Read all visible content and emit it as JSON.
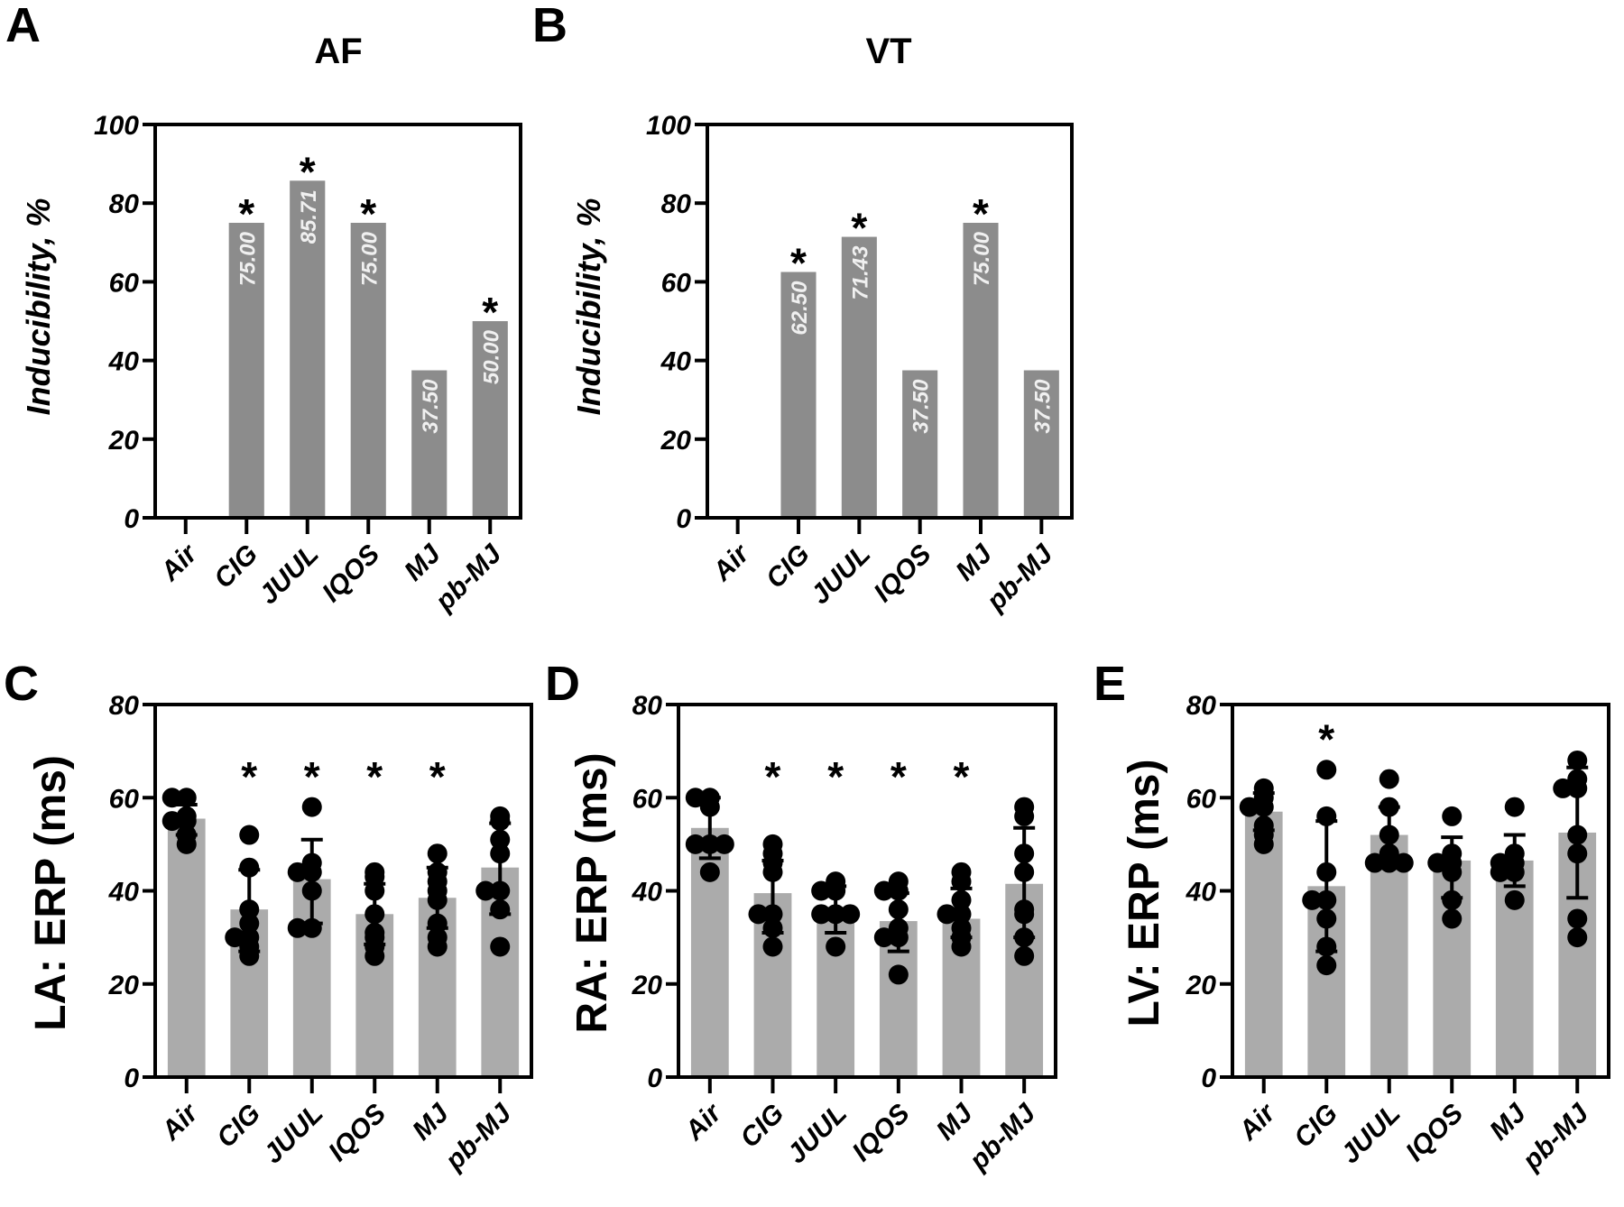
{
  "figure": {
    "colors": {
      "inducibility_bar": "#8c8c8c",
      "erp_bar": "#ababab",
      "axis": "#000000",
      "dot": "#000000",
      "bar_label_text": "#f2f2f2"
    }
  },
  "chart_data": [
    {
      "panel": "A",
      "type": "bar",
      "title": "AF",
      "ylabel": "Inducibility, %",
      "xlabel": "",
      "categories": [
        "Air",
        "CIG",
        "JUUL",
        "IQOS",
        "MJ",
        "pb-MJ"
      ],
      "values": [
        0,
        75.0,
        85.71,
        75.0,
        37.5,
        50.0
      ],
      "value_labels": [
        "",
        "75.00",
        "85.71",
        "75.00",
        "37.50",
        "50.00"
      ],
      "significant": [
        false,
        true,
        true,
        true,
        false,
        true
      ],
      "ylim": [
        0,
        100
      ],
      "yticks": [
        0,
        20,
        40,
        60,
        80,
        100
      ],
      "ytick_labels": [
        "0",
        "20",
        "40",
        "60",
        "80",
        "100"
      ],
      "grid": false,
      "legend": "none"
    },
    {
      "panel": "B",
      "type": "bar",
      "title": "VT",
      "ylabel": "Inducibility, %",
      "xlabel": "",
      "categories": [
        "Air",
        "CIG",
        "JUUL",
        "IQOS",
        "MJ",
        "pb-MJ"
      ],
      "values": [
        0,
        62.5,
        71.43,
        37.5,
        75.0,
        37.5
      ],
      "value_labels": [
        "",
        "62.50",
        "71.43",
        "37.50",
        "75.00",
        "37.50"
      ],
      "significant": [
        false,
        true,
        true,
        false,
        true,
        false
      ],
      "ylim": [
        0,
        100
      ],
      "yticks": [
        0,
        20,
        40,
        60,
        80,
        100
      ],
      "ytick_labels": [
        "0",
        "20",
        "40",
        "60",
        "80",
        "100"
      ],
      "grid": false,
      "legend": "none"
    },
    {
      "panel": "C",
      "type": "bar",
      "title": "",
      "ylabel": "LA: ERP (ms)",
      "xlabel": "",
      "categories": [
        "Air",
        "CIG",
        "JUUL",
        "IQOS",
        "MJ",
        "pb-MJ"
      ],
      "values": [
        55.5,
        36.0,
        42.5,
        35.0,
        38.5,
        45.0
      ],
      "error_upper": [
        58.5,
        44.5,
        51.0,
        41.5,
        45.0,
        54.5
      ],
      "error_lower": [
        52.0,
        27.0,
        33.0,
        28.5,
        32.0,
        35.0
      ],
      "points": [
        [
          60,
          60,
          56,
          55,
          55,
          52,
          50
        ],
        [
          52,
          45,
          36,
          33,
          30,
          30,
          28,
          26
        ],
        [
          58,
          46,
          44,
          44,
          40,
          32,
          32
        ],
        [
          44,
          43,
          40,
          35,
          31,
          30,
          28,
          26
        ],
        [
          48,
          44,
          42,
          40,
          38,
          33,
          30,
          28
        ],
        [
          56,
          55,
          51,
          48,
          40,
          40,
          36,
          28
        ]
      ],
      "significant": [
        false,
        true,
        true,
        true,
        true,
        false
      ],
      "ylim": [
        0,
        80
      ],
      "yticks": [
        0,
        20,
        40,
        60,
        80
      ],
      "ytick_labels": [
        "0",
        "20",
        "40",
        "60",
        "80"
      ],
      "grid": false,
      "legend": "none"
    },
    {
      "panel": "D",
      "type": "bar",
      "title": "",
      "ylabel": "RA: ERP (ms)",
      "xlabel": "",
      "categories": [
        "Air",
        "CIG",
        "JUUL",
        "IQOS",
        "MJ",
        "pb-MJ"
      ],
      "values": [
        53.5,
        39.5,
        36.0,
        33.5,
        34.0,
        41.5
      ],
      "error_upper": [
        60.0,
        46.5,
        41.0,
        39.5,
        40.5,
        53.5
      ],
      "error_lower": [
        47.0,
        31.0,
        31.0,
        27.0,
        30.0,
        30.0
      ],
      "points": [
        [
          60,
          60,
          58,
          50,
          50,
          50,
          44
        ],
        [
          50,
          48,
          46,
          44,
          35,
          35,
          32,
          28
        ],
        [
          42,
          40,
          40,
          35,
          35,
          35,
          28
        ],
        [
          42,
          40,
          40,
          36,
          32,
          30,
          30,
          22
        ],
        [
          44,
          42,
          38,
          35,
          35,
          32,
          30,
          28
        ],
        [
          58,
          56,
          48,
          44,
          36,
          35,
          30,
          26
        ]
      ],
      "significant": [
        false,
        true,
        true,
        true,
        true,
        false
      ],
      "ylim": [
        0,
        80
      ],
      "yticks": [
        0,
        20,
        40,
        60,
        80
      ],
      "ytick_labels": [
        "0",
        "20",
        "40",
        "60",
        "80"
      ],
      "grid": false,
      "legend": "none"
    },
    {
      "panel": "E",
      "type": "bar",
      "title": "",
      "ylabel": "LV: ERP (ms)",
      "xlabel": "",
      "categories": [
        "Air",
        "CIG",
        "JUUL",
        "IQOS",
        "MJ",
        "pb-MJ"
      ],
      "values": [
        57.0,
        41.0,
        52.0,
        46.5,
        46.5,
        52.5
      ],
      "error_upper": [
        61.0,
        55.0,
        58.0,
        51.5,
        52.0,
        66.5
      ],
      "error_lower": [
        53.0,
        27.0,
        46.0,
        38.5,
        41.0,
        38.5
      ],
      "points": [
        [
          62,
          60,
          58,
          58,
          54,
          52,
          50
        ],
        [
          66,
          56,
          44,
          38,
          38,
          34,
          28,
          24
        ],
        [
          64,
          58,
          52,
          48,
          46,
          46,
          46
        ],
        [
          56,
          48,
          46,
          46,
          44,
          38,
          34
        ],
        [
          58,
          48,
          46,
          46,
          44,
          44,
          38
        ],
        [
          68,
          64,
          62,
          62,
          52,
          48,
          34,
          30
        ]
      ],
      "significant": [
        false,
        true,
        false,
        false,
        false,
        false
      ],
      "ylim": [
        0,
        80
      ],
      "yticks": [
        0,
        20,
        40,
        60,
        80
      ],
      "ytick_labels": [
        "0",
        "20",
        "40",
        "60",
        "80"
      ],
      "grid": false,
      "legend": "none"
    }
  ],
  "labels": {
    "star_glyph": "*"
  }
}
